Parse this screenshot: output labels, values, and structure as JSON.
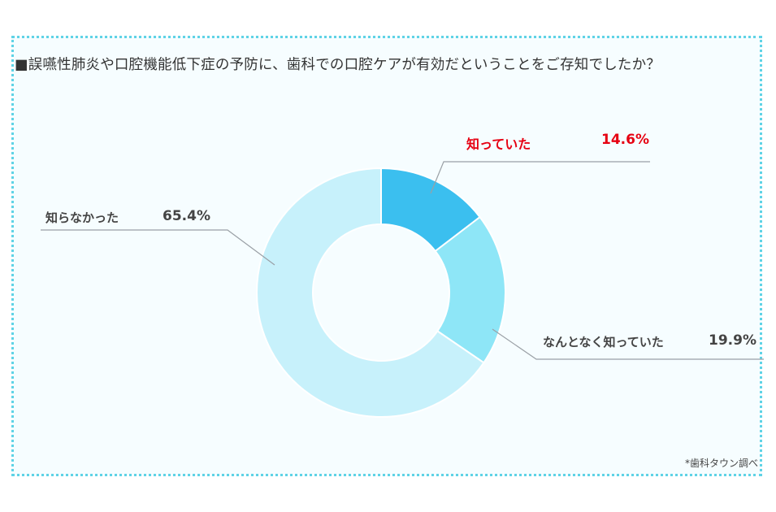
{
  "chart_data": {
    "type": "pie",
    "title": "■誤嚥性肺炎や口腔機能低下症の予防に、歯科での口腔ケアが有効だということをご存知でしたか？",
    "categories": [
      "知っていた",
      "なんとなく知っていた",
      "知らなかった"
    ],
    "values": [
      14.6,
      19.9,
      65.4
    ],
    "value_labels": [
      "14.6%",
      "19.9%",
      "65.4%"
    ],
    "colors": [
      "#3bbfef",
      "#8ee6f7",
      "#c7f1fb"
    ],
    "highlight_color": "#e60012",
    "donut": true,
    "legend": "none",
    "source": "*歯科タウン調べ"
  }
}
